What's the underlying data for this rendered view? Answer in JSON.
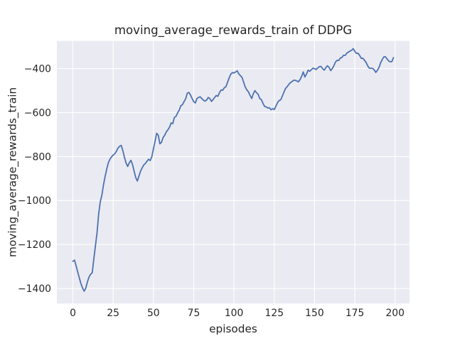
{
  "figure": {
    "title": "moving_average_rewards_train of DDPG",
    "xlabel": "episodes",
    "ylabel": "moving_average_rewards_train"
  },
  "chart_data": {
    "type": "line",
    "title": "moving_average_rewards_train of DDPG",
    "xlabel": "episodes",
    "ylabel": "moving_average_rewards_train",
    "legend": null,
    "grid": true,
    "plot_bg_color": "#EAEAF2",
    "grid_color": "#FFFFFF",
    "line_color": "#4C72B0",
    "text_color": "#262626",
    "figure_bg_color": "#FFFFFF",
    "xlim": [
      -9.95,
      208.95
    ],
    "ylim": [
      -1468,
      -274
    ],
    "xticks": [
      0,
      25,
      50,
      75,
      100,
      125,
      150,
      175,
      200
    ],
    "xtick_labels": [
      "0",
      "25",
      "50",
      "75",
      "100",
      "125",
      "150",
      "175",
      "200"
    ],
    "yticks": [
      -400,
      -600,
      -800,
      -1000,
      -1200,
      -1400
    ],
    "ytick_labels": [
      "−400",
      "−600",
      "−800",
      "−1000",
      "−1200",
      "−1400"
    ],
    "x_first": 0,
    "x_step": 1,
    "values": [
      -1276,
      -1271,
      -1297,
      -1325,
      -1352,
      -1378,
      -1398,
      -1412,
      -1398,
      -1370,
      -1348,
      -1335,
      -1328,
      -1265,
      -1205,
      -1145,
      -1060,
      -1005,
      -975,
      -928,
      -890,
      -857,
      -828,
      -812,
      -801,
      -793,
      -787,
      -776,
      -761,
      -753,
      -749,
      -773,
      -803,
      -829,
      -845,
      -828,
      -817,
      -836,
      -866,
      -895,
      -911,
      -889,
      -866,
      -851,
      -838,
      -831,
      -821,
      -812,
      -818,
      -800,
      -765,
      -730,
      -694,
      -703,
      -742,
      -735,
      -713,
      -703,
      -687,
      -678,
      -666,
      -647,
      -650,
      -622,
      -617,
      -601,
      -589,
      -569,
      -564,
      -550,
      -537,
      -512,
      -508,
      -520,
      -536,
      -550,
      -556,
      -536,
      -531,
      -528,
      -536,
      -543,
      -548,
      -543,
      -531,
      -536,
      -549,
      -541,
      -531,
      -522,
      -526,
      -509,
      -497,
      -498,
      -487,
      -482,
      -462,
      -442,
      -425,
      -418,
      -420,
      -415,
      -410,
      -424,
      -432,
      -440,
      -462,
      -484,
      -497,
      -506,
      -522,
      -536,
      -514,
      -500,
      -510,
      -517,
      -536,
      -541,
      -558,
      -572,
      -574,
      -579,
      -578,
      -587,
      -582,
      -586,
      -571,
      -555,
      -545,
      -542,
      -525,
      -507,
      -490,
      -482,
      -472,
      -464,
      -459,
      -453,
      -453,
      -456,
      -460,
      -450,
      -435,
      -415,
      -438,
      -425,
      -407,
      -412,
      -405,
      -398,
      -400,
      -404,
      -397,
      -391,
      -390,
      -400,
      -407,
      -396,
      -387,
      -394,
      -409,
      -400,
      -387,
      -370,
      -362,
      -363,
      -352,
      -349,
      -339,
      -340,
      -330,
      -325,
      -320,
      -317,
      -309,
      -321,
      -331,
      -330,
      -340,
      -353,
      -353,
      -362,
      -372,
      -387,
      -398,
      -398,
      -399,
      -405,
      -417,
      -408,
      -395,
      -374,
      -359,
      -347,
      -346,
      -356,
      -365,
      -369,
      -368,
      -350
    ]
  }
}
